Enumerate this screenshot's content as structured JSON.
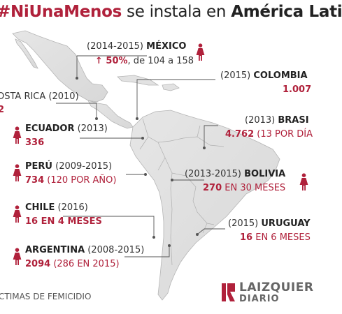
{
  "title": {
    "hash": "#NiUnaMenos",
    "middle": " se instala en ",
    "bold_end": "América Lati"
  },
  "colors": {
    "accent": "#b0213b",
    "land": "#e2e2e2",
    "border": "#b5b5b5",
    "line": "#555555"
  },
  "icon_name": "female-figure-icon",
  "entries": {
    "mexico": {
      "years": "(2014-2015) ",
      "country": "MÉXICO",
      "value": "↑ 50%",
      "detail": ", de 104 a 158"
    },
    "colombia": {
      "years": "(2015) ",
      "country": "COLOMBIA",
      "value": "1.007"
    },
    "costa_rica": {
      "label": "OSTA RICA (2010)",
      "value": "2"
    },
    "brasil": {
      "years": "(2013) ",
      "country": "BRASI",
      "value": "4.762",
      "detail": " (13 POR DÍA"
    },
    "ecuador": {
      "country": "ECUADOR",
      "years": " (2013)",
      "value": "336"
    },
    "peru": {
      "country": "PERÚ",
      "years": " (2009-2015)",
      "value": "734",
      "detail": " (120 POR AÑO)"
    },
    "bolivia": {
      "years": "(2013-2015) ",
      "country": "BOLIVIA",
      "value": "270",
      "detail": " EN 30 MESES"
    },
    "chile": {
      "country": "CHILE",
      "years": " (2016)",
      "value": "16 EN 4 MESES"
    },
    "uruguay": {
      "years": "(2015) ",
      "country": "URUGUAY",
      "value": "16",
      "detail": " EN 6 MESES"
    },
    "argentina": {
      "country": "ARGENTINA",
      "years": " (2008-2015)",
      "value": "2094",
      "detail": " (286 EN 2015)"
    }
  },
  "footer": "CTIMAS DE FEMICIDIO",
  "logo": {
    "line1": "LAIZQUIER",
    "line2": "DIARIO"
  }
}
